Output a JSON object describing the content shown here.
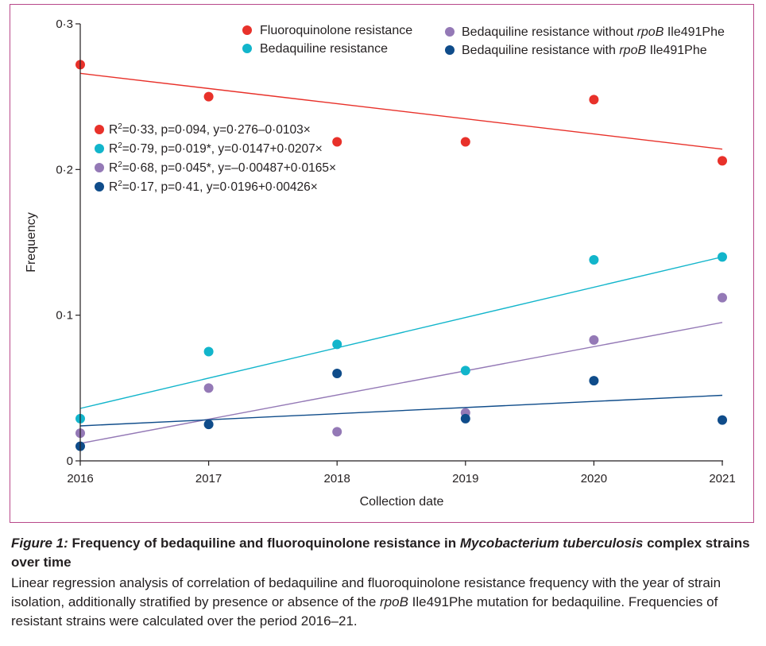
{
  "chart_data": {
    "type": "scatter",
    "x": [
      2016,
      2017,
      2018,
      2019,
      2020,
      2021
    ],
    "xlabel": "Collection date",
    "ylabel": "Frequency",
    "xlim": [
      2016,
      2021
    ],
    "ylim": [
      0,
      0.3
    ],
    "x_ticks": [
      "2016",
      "2017",
      "2018",
      "2019",
      "2020",
      "2021"
    ],
    "y_ticks": [
      "0",
      "0·1",
      "0·2",
      "0·3"
    ],
    "grid": false,
    "legend_placement": "top",
    "series": [
      {
        "name": "Fluoroquinolone resistance",
        "color": "#e8312a",
        "values": [
          0.272,
          0.25,
          0.219,
          0.219,
          0.248,
          0.206
        ],
        "fit_line": [
          0.266,
          0.214
        ],
        "stats": {
          "r2": "0·33",
          "p": "0·094",
          "eq": "0·276–0·0103×",
          "sig": ""
        }
      },
      {
        "name": "Bedaquiline resistance",
        "color": "#12b5cb",
        "values": [
          0.029,
          0.075,
          0.08,
          0.062,
          0.138,
          0.14
        ],
        "fit_line": [
          0.036,
          0.14
        ],
        "stats": {
          "r2": "0·79",
          "p": "0·019",
          "eq": "0·0147+0·0207×",
          "sig": "*"
        }
      },
      {
        "name_prefix": "Bedaquiline resistance without ",
        "name_gene": "rpoB",
        "name_suffix": " Ile491Phe",
        "color": "#9479b6",
        "values": [
          0.019,
          0.05,
          0.02,
          0.033,
          0.083,
          0.112
        ],
        "fit_line": [
          0.012,
          0.095
        ],
        "stats": {
          "r2": "0·68",
          "p": "0·045",
          "eq": "–0·00487+0·0165×",
          "sig": "*"
        }
      },
      {
        "name_prefix": "Bedaquiline resistance with ",
        "name_gene": "rpoB",
        "name_suffix": " Ile491Phe",
        "color": "#0f4c8a",
        "values": [
          0.01,
          0.025,
          0.06,
          0.029,
          0.055,
          0.028
        ],
        "fit_line": [
          0.024,
          0.045
        ],
        "stats": {
          "r2": "0·17",
          "p": "0·41",
          "eq": "0·0196+0·00426×",
          "sig": ""
        }
      }
    ]
  },
  "caption": {
    "figure_label": "Figure 1:",
    "title_prefix": " Frequency of bedaquiline and fluoroquinolone resistance in ",
    "title_species": "Mycobacterium tuberculosis",
    "title_suffix": " complex strains over time",
    "body_prefix": "Linear regression analysis of correlation of bedaquiline and fluoroquinolone resistance frequency with the year of strain isolation, additionally stratified by presence or absence of the ",
    "body_gene": "rpoB",
    "body_suffix": " Ile491Phe mutation for bedaquiline. Frequencies of resistant strains were calculated over the period 2016–21."
  }
}
